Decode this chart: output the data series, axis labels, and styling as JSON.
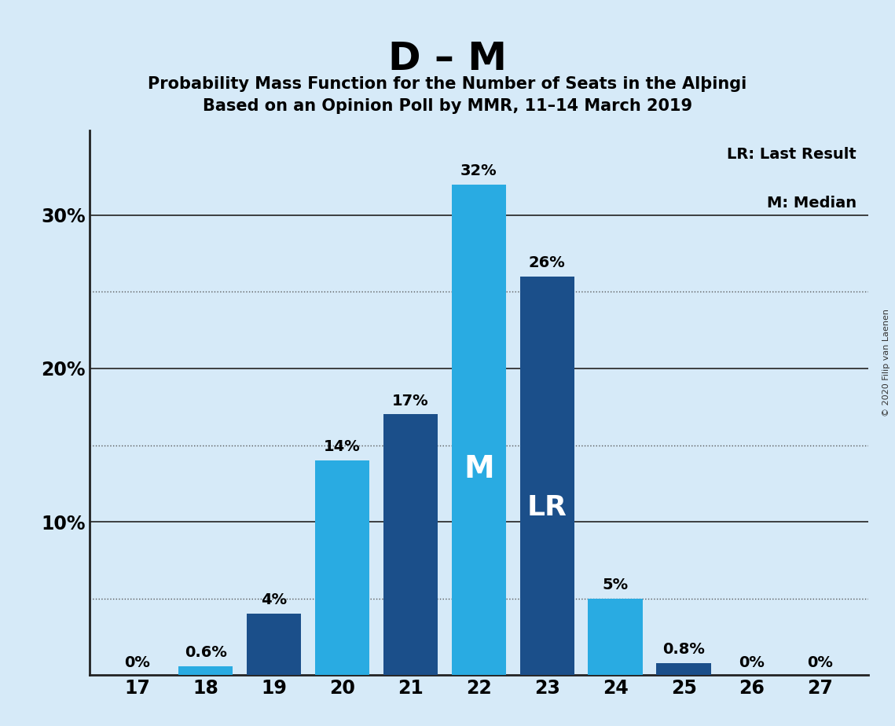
{
  "title": "D – M",
  "subtitle1": "Probability Mass Function for the Number of Seats in the Alþingi",
  "subtitle2": "Based on an Opinion Poll by MMR, 11–14 March 2019",
  "copyright": "© 2020 Filip van Laenen",
  "seats": [
    17,
    18,
    19,
    20,
    21,
    22,
    23,
    24,
    25,
    26,
    27
  ],
  "probabilities": [
    0.0,
    0.006,
    0.04,
    0.14,
    0.17,
    0.32,
    0.26,
    0.05,
    0.008,
    0.0,
    0.0
  ],
  "labels": [
    "0%",
    "0.6%",
    "4%",
    "14%",
    "17%",
    "32%",
    "26%",
    "5%",
    "0.8%",
    "0%",
    "0%"
  ],
  "median_seat": 22,
  "lr_seat": 23,
  "colors": {
    "light_blue": "#29ABE2",
    "dark_blue": "#1B4F8A",
    "background": "#D6EAF8",
    "text": "#000000",
    "white": "#FFFFFF"
  },
  "bar_colors_by_seat": {
    "17": "light_blue",
    "18": "light_blue",
    "19": "dark_blue",
    "20": "light_blue",
    "21": "dark_blue",
    "22": "light_blue",
    "23": "dark_blue",
    "24": "light_blue",
    "25": "dark_blue",
    "26": "light_blue",
    "27": "light_blue"
  },
  "ylim": [
    0,
    0.355
  ],
  "solid_yticks": [
    0.1,
    0.2,
    0.3
  ],
  "dotted_yticks": [
    0.05,
    0.15,
    0.25
  ],
  "ytick_labels_positions": [
    0.1,
    0.2,
    0.3
  ],
  "ytick_labels": [
    "10%",
    "20%",
    "30%"
  ],
  "legend_text1": "LR: Last Result",
  "legend_text2": "M: Median",
  "title_fontsize": 36,
  "subtitle_fontsize": 15,
  "label_fontsize": 14,
  "tick_fontsize": 17,
  "inner_label_fontsize": 28
}
